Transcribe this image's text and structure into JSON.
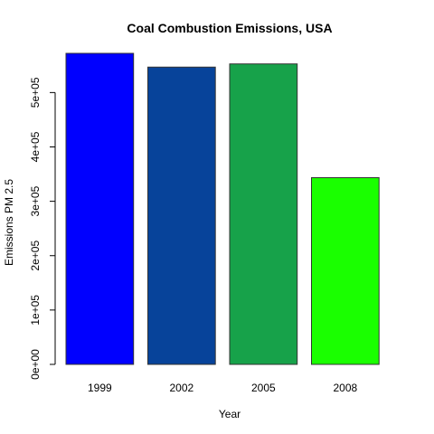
{
  "chart_data": {
    "type": "bar",
    "title": "Coal Combustion Emissions, USA",
    "xlabel": "Year",
    "ylabel": "Emissions PM 2.5",
    "categories": [
      "1999",
      "2002",
      "2005",
      "2008"
    ],
    "values": [
      572126,
      546789,
      552675,
      343432
    ],
    "colors": [
      "#0000FF",
      "#07439A",
      "#17A24A",
      "#1AFF00"
    ],
    "ylim": [
      0,
      600000
    ],
    "y_ticks": [
      0,
      100000,
      200000,
      300000,
      400000,
      500000
    ],
    "y_tick_labels": [
      "0e+00",
      "1e+05",
      "2e+05",
      "3e+05",
      "4e+05",
      "5e+05"
    ],
    "grid": false,
    "legend": "none"
  }
}
